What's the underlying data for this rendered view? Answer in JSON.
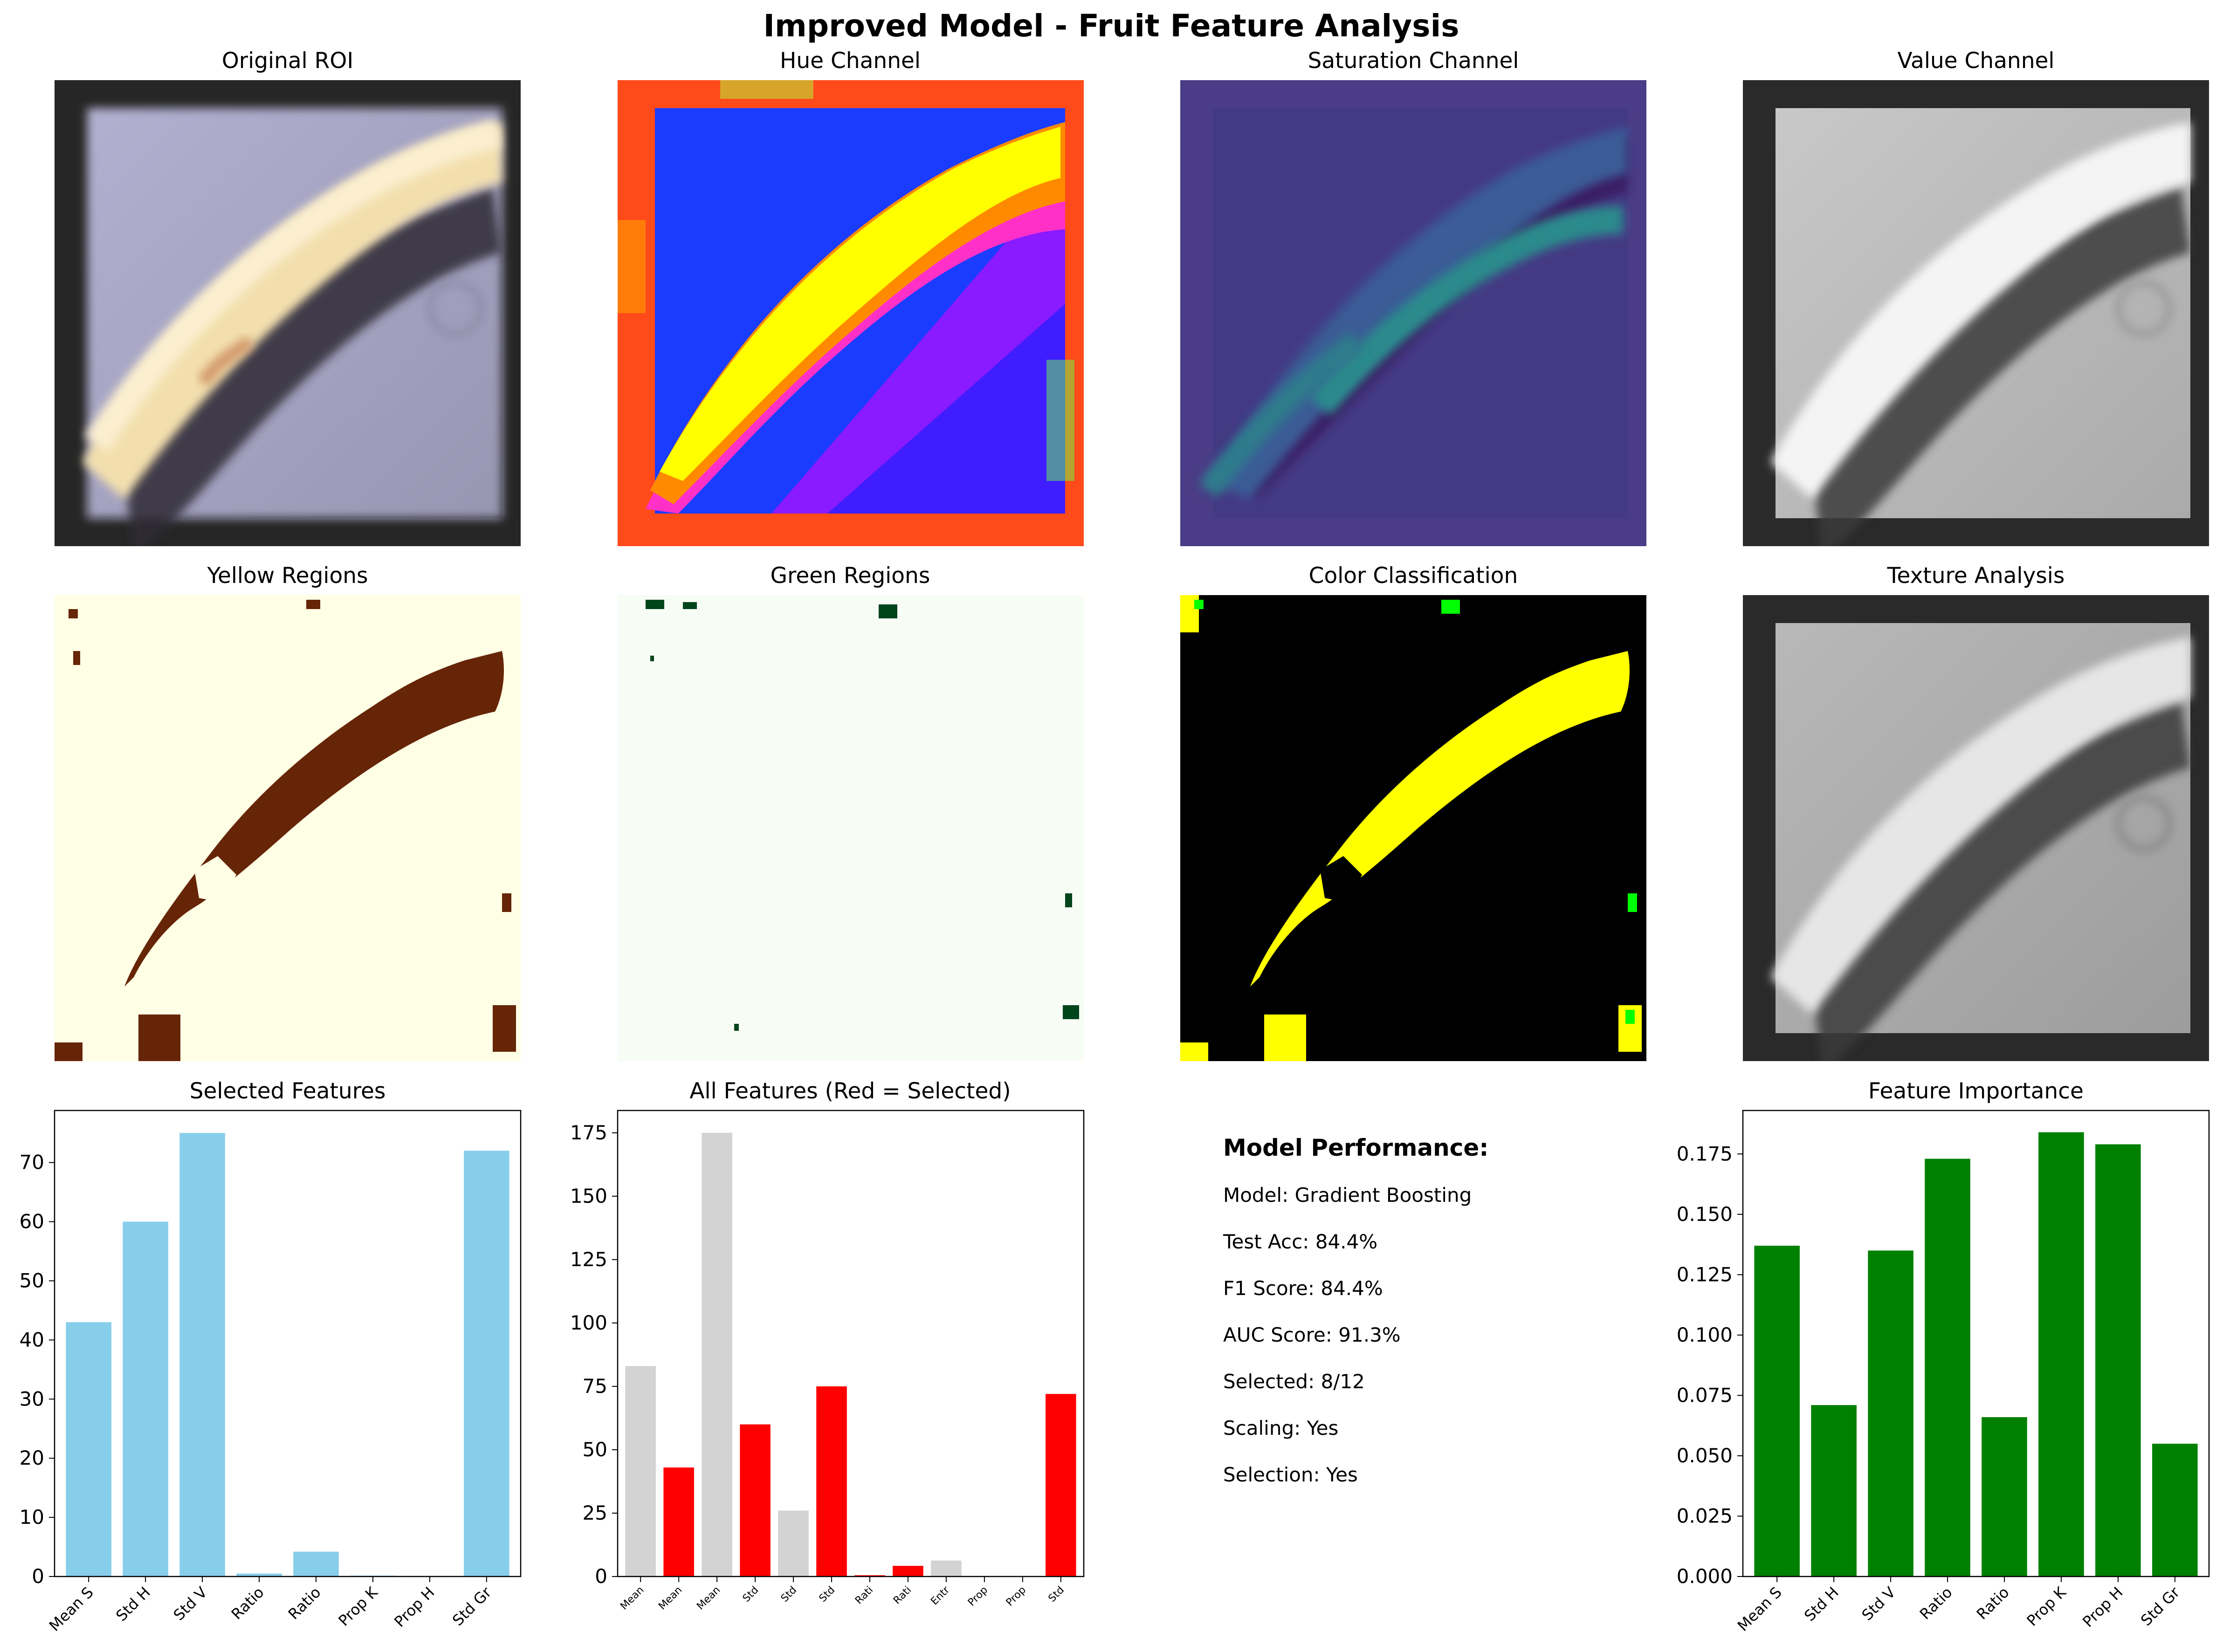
{
  "figure": {
    "title": "Improved Model - Fruit Feature Analysis"
  },
  "images": {
    "original_roi": "Original ROI",
    "hue": "Hue Channel",
    "saturation": "Saturation Channel",
    "value": "Value Channel",
    "yellow": "Yellow Regions",
    "green": "Green Regions",
    "color_class": "Color Classification",
    "texture": "Texture Analysis"
  },
  "performance": {
    "heading": "Model Performance:",
    "lines": [
      "Model: Gradient Boosting",
      "Test Acc: 84.4%",
      "F1 Score: 84.4%",
      "AUC Score: 91.3%",
      "Selected: 8/12",
      "Scaling: Yes",
      "Selection: Yes"
    ]
  },
  "colors": {
    "selected_bar": "#87ceeb",
    "all_selected": "#ff0000",
    "all_unselected": "#d3d3d3",
    "importance_bar": "#008000"
  },
  "chart_data": [
    {
      "type": "bar",
      "title": "Selected Features",
      "categories": [
        "Mean S",
        "Std H",
        "Std V",
        "Ratio",
        "Ratio",
        "Prop K",
        "Prop H",
        "Std Gr"
      ],
      "values": [
        43,
        60,
        75,
        0.5,
        4.2,
        0.15,
        0.1,
        72
      ],
      "yticks": [
        0,
        10,
        20,
        30,
        40,
        50,
        60,
        70
      ],
      "ylim": [
        0,
        78.8
      ],
      "color": "#87ceeb"
    },
    {
      "type": "bar",
      "title": "All Features (Red = Selected)",
      "categories": [
        "Mean",
        "Mean",
        "Mean",
        "Std",
        "Std",
        "Std",
        "Rati",
        "Rati",
        "Entr",
        "Prop",
        "Prop",
        "Std"
      ],
      "values": [
        83,
        43,
        175,
        60,
        26,
        75,
        0.5,
        4.2,
        6.3,
        0.15,
        0.1,
        72
      ],
      "selected": [
        false,
        true,
        false,
        true,
        false,
        true,
        true,
        true,
        false,
        true,
        true,
        true
      ],
      "yticks": [
        0,
        25,
        50,
        75,
        100,
        125,
        150,
        175
      ],
      "ylim": [
        0,
        183.8
      ]
    },
    {
      "type": "bar",
      "title": "Feature Importance",
      "categories": [
        "Mean S",
        "Std H",
        "Std V",
        "Ratio",
        "Ratio",
        "Prop K",
        "Prop H",
        "Std Gr"
      ],
      "values": [
        0.137,
        0.071,
        0.135,
        0.173,
        0.066,
        0.184,
        0.179,
        0.055
      ],
      "yticks": [
        "0.000",
        "0.025",
        "0.050",
        "0.075",
        "0.100",
        "0.125",
        "0.150",
        "0.175"
      ],
      "ylim": [
        0,
        0.193
      ],
      "color": "#008000"
    }
  ]
}
